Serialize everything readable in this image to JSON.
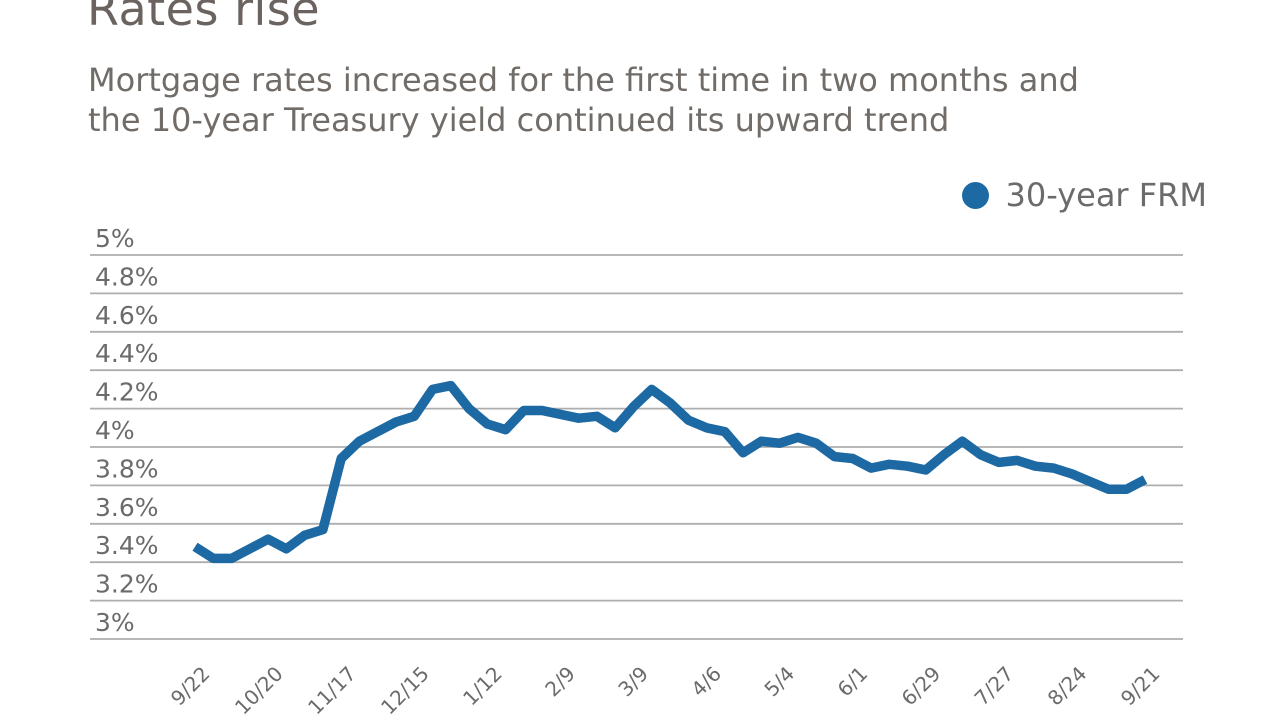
{
  "header": {
    "title": "Rates rise",
    "subtitle_line1": "Mortgage rates increased for the first time in two months and",
    "subtitle_line2": "the 10-year Treasury yield continued its upward trend"
  },
  "legend": {
    "series_label": "30-year FRM"
  },
  "style": {
    "line_color": "#1d69a3",
    "grid_color": "#aeaeae",
    "axis_text_color": "#6b6b6b",
    "title_color": "#6a635f",
    "subtitle_color": "#716c68",
    "background": "#ffffff"
  },
  "chart_data": {
    "type": "line",
    "title": "Rates rise",
    "subtitle": "Mortgage rates increased for the first time in two months and the 10-year Treasury yield continued its upward trend",
    "unit": "%",
    "grid": "horizontal",
    "legend_position": "top-right",
    "ylim": [
      3,
      5
    ],
    "y_ticks": [
      5,
      4.8,
      4.6,
      4.4,
      4.2,
      4,
      3.8,
      3.6,
      3.4,
      3.2,
      3
    ],
    "y_tick_labels": [
      "5%",
      "4.8%",
      "4.6%",
      "4.4%",
      "4.2%",
      "4%",
      "3.8%",
      "3.6%",
      "3.4%",
      "3.2%",
      "3%"
    ],
    "x": [
      "9/22",
      "9/29",
      "10/6",
      "10/13",
      "10/20",
      "10/27",
      "11/3",
      "11/10",
      "11/17",
      "11/24",
      "12/1",
      "12/8",
      "12/15",
      "12/22",
      "12/29",
      "1/5",
      "1/12",
      "1/19",
      "1/26",
      "2/2",
      "2/9",
      "2/16",
      "2/23",
      "3/2",
      "3/9",
      "3/16",
      "3/23",
      "3/30",
      "4/6",
      "4/13",
      "4/20",
      "4/27",
      "5/4",
      "5/11",
      "5/18",
      "5/25",
      "6/1",
      "6/8",
      "6/15",
      "6/22",
      "6/29",
      "7/6",
      "7/13",
      "7/20",
      "7/27",
      "8/3",
      "8/10",
      "8/17",
      "8/24",
      "8/31",
      "9/7",
      "9/14",
      "9/21"
    ],
    "x_tick_indices": [
      0,
      4,
      8,
      12,
      16,
      20,
      24,
      28,
      32,
      36,
      40,
      44,
      48,
      52
    ],
    "x_tick_labels": [
      "9/22",
      "10/20",
      "11/17",
      "12/15",
      "1/12",
      "2/9",
      "3/9",
      "4/6",
      "5/4",
      "6/1",
      "6/29",
      "7/27",
      "8/24",
      "9/21"
    ],
    "series": [
      {
        "name": "30-year FRM",
        "color": "#1d69a3",
        "values": [
          3.48,
          3.42,
          3.42,
          3.47,
          3.52,
          3.47,
          3.54,
          3.57,
          3.94,
          4.03,
          4.08,
          4.13,
          4.16,
          4.3,
          4.32,
          4.2,
          4.12,
          4.09,
          4.19,
          4.19,
          4.17,
          4.15,
          4.16,
          4.1,
          4.21,
          4.3,
          4.23,
          4.14,
          4.1,
          4.08,
          3.97,
          4.03,
          4.02,
          4.05,
          4.02,
          3.95,
          3.94,
          3.89,
          3.91,
          3.9,
          3.88,
          3.96,
          4.03,
          3.96,
          3.92,
          3.93,
          3.9,
          3.89,
          3.86,
          3.82,
          3.78,
          3.78,
          3.83
        ]
      }
    ]
  }
}
